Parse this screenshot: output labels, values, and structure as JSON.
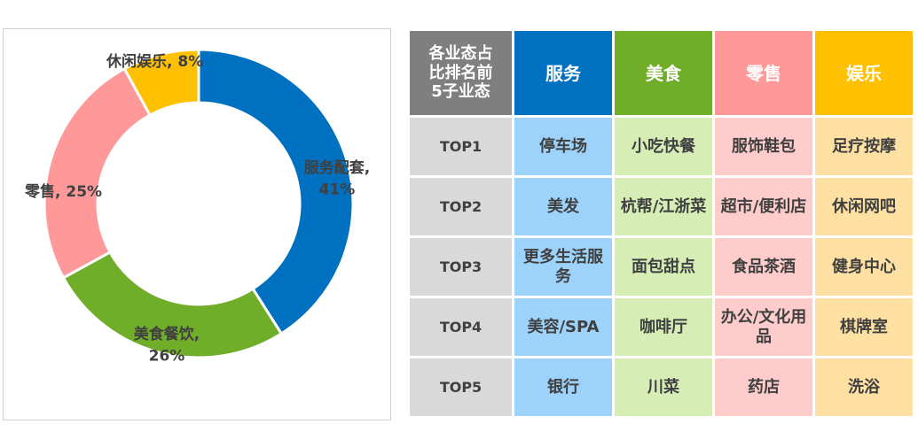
{
  "chart_data": {
    "type": "pie",
    "variant": "donut",
    "slices": [
      {
        "name": "服务配套",
        "value": 41,
        "color": "#0070C0",
        "label_line1": "服务配套,",
        "label_line2": "41%"
      },
      {
        "name": "美食餐饮",
        "value": 26,
        "color": "#70AD29",
        "label_line1": "美食餐饮,",
        "label_line2": "26%"
      },
      {
        "name": "零售",
        "value": 25,
        "color": "#FF9999",
        "label_line1": "零售, 25%",
        "label_line2": ""
      },
      {
        "name": "休闲娱乐",
        "value": 8,
        "color": "#FFC000",
        "label_line1": "休闲娱乐, 8%",
        "label_line2": ""
      }
    ]
  },
  "table": {
    "corner_line1": "各业态占",
    "corner_line2": "比排名前",
    "corner_line3": "5子业态",
    "categories": [
      {
        "name": "服务",
        "header_color": "#0070C0",
        "cell_color": "#9DD3FB"
      },
      {
        "name": "美食",
        "header_color": "#70AD29",
        "cell_color": "#D6EDB6"
      },
      {
        "name": "零售",
        "header_color": "#FF9999",
        "cell_color": "#FFCCCC"
      },
      {
        "name": "娱乐",
        "header_color": "#FFC000",
        "cell_color": "#FFE0A3"
      }
    ],
    "rows": [
      {
        "rank": "TOP1",
        "cells": [
          "停车场",
          "小吃快餐",
          "服饰鞋包",
          "足疗按摩"
        ]
      },
      {
        "rank": "TOP2",
        "cells": [
          "美发",
          "杭帮/江浙菜",
          "超市/便利店",
          "休闲网吧"
        ]
      },
      {
        "rank": "TOP3",
        "cells": [
          "更多生活服务",
          "面包甜点",
          "食品茶酒",
          "健身中心"
        ]
      },
      {
        "rank": "TOP4",
        "cells": [
          "美容/SPA",
          "咖啡厅",
          "办公/文化用品",
          "棋牌室"
        ]
      },
      {
        "rank": "TOP5",
        "cells": [
          "银行",
          "川菜",
          "药店",
          "洗浴"
        ]
      }
    ]
  }
}
